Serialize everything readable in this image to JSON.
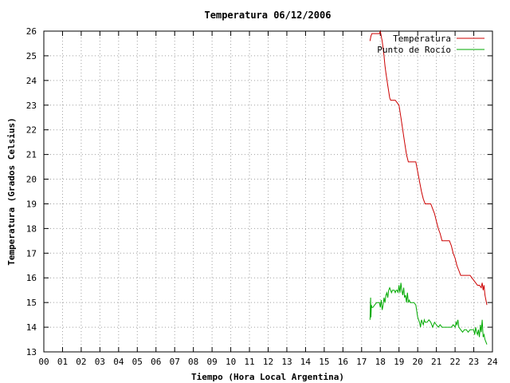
{
  "chart_data": {
    "type": "line",
    "title": "Temperatura 06/12/2006",
    "xlabel": "Tiempo (Hora Local Argentina)",
    "ylabel": "Temperatura (Grados Celsius)",
    "xlim": [
      0,
      24
    ],
    "ylim": [
      13,
      26
    ],
    "x_tick_labels": [
      "00",
      "01",
      "02",
      "03",
      "04",
      "05",
      "06",
      "07",
      "08",
      "09",
      "10",
      "11",
      "12",
      "13",
      "14",
      "15",
      "16",
      "17",
      "18",
      "19",
      "20",
      "21",
      "22",
      "23",
      "24"
    ],
    "y_ticks": [
      13,
      14,
      15,
      16,
      17,
      18,
      19,
      20,
      21,
      22,
      23,
      24,
      25,
      26
    ],
    "grid": true,
    "legend_position": "top-right",
    "series": [
      {
        "name": "Temperatura",
        "color": "#cc0000",
        "x": [
          17.45,
          17.5,
          17.55,
          17.6,
          17.65,
          17.7,
          17.75,
          17.85,
          17.95,
          18.0,
          18.05,
          18.1,
          18.15,
          18.2,
          18.25,
          18.3,
          18.4,
          18.5,
          18.55,
          18.6,
          18.7,
          18.8,
          18.9,
          19.0,
          19.1,
          19.2,
          19.3,
          19.4,
          19.5,
          19.6,
          19.7,
          19.8,
          19.9,
          20.0,
          20.1,
          20.2,
          20.3,
          20.4,
          20.5,
          20.6,
          20.7,
          20.8,
          20.9,
          21.0,
          21.1,
          21.2,
          21.3,
          21.4,
          21.5,
          21.6,
          21.7,
          21.8,
          21.9,
          22.0,
          22.1,
          22.2,
          22.3,
          22.4,
          22.5,
          22.6,
          22.7,
          22.8,
          22.9,
          23.0,
          23.1,
          23.2,
          23.3,
          23.4,
          23.45,
          23.5,
          23.55,
          23.6,
          23.65,
          23.7
        ],
        "values": [
          25.6,
          25.8,
          25.9,
          25.9,
          25.9,
          25.9,
          25.9,
          25.9,
          25.9,
          26.0,
          25.8,
          25.6,
          25.3,
          25.0,
          24.6,
          24.3,
          23.8,
          23.3,
          23.2,
          23.2,
          23.2,
          23.2,
          23.1,
          23.0,
          22.5,
          22.0,
          21.5,
          21.0,
          20.7,
          20.7,
          20.7,
          20.7,
          20.7,
          20.3,
          19.9,
          19.5,
          19.2,
          19.0,
          19.0,
          19.0,
          19.0,
          18.8,
          18.6,
          18.3,
          18.0,
          17.8,
          17.5,
          17.5,
          17.5,
          17.5,
          17.5,
          17.3,
          17.0,
          16.8,
          16.5,
          16.3,
          16.1,
          16.1,
          16.1,
          16.1,
          16.1,
          16.1,
          16.0,
          15.9,
          15.8,
          15.7,
          15.7,
          15.6,
          15.8,
          15.5,
          15.7,
          15.3,
          15.1,
          14.9
        ]
      },
      {
        "name": "Punto de Rocío",
        "color": "#00aa00",
        "x": [
          17.45,
          17.48,
          17.5,
          17.52,
          17.55,
          17.6,
          17.7,
          17.8,
          17.9,
          17.95,
          18.0,
          18.05,
          18.1,
          18.15,
          18.2,
          18.25,
          18.3,
          18.35,
          18.4,
          18.45,
          18.5,
          18.55,
          18.6,
          18.65,
          18.7,
          18.75,
          18.8,
          18.85,
          18.9,
          18.95,
          19.0,
          19.05,
          19.1,
          19.15,
          19.2,
          19.25,
          19.3,
          19.35,
          19.4,
          19.45,
          19.5,
          19.55,
          19.6,
          19.65,
          19.7,
          19.8,
          19.9,
          20.0,
          20.05,
          20.1,
          20.15,
          20.2,
          20.25,
          20.3,
          20.35,
          20.4,
          20.45,
          20.5,
          20.6,
          20.7,
          20.8,
          20.9,
          21.0,
          21.1,
          21.2,
          21.3,
          21.4,
          21.5,
          21.6,
          21.7,
          21.8,
          21.9,
          22.0,
          22.05,
          22.1,
          22.15,
          22.2,
          22.3,
          22.4,
          22.5,
          22.6,
          22.7,
          22.8,
          22.9,
          23.0,
          23.05,
          23.1,
          23.15,
          23.2,
          23.25,
          23.3,
          23.35,
          23.4,
          23.45,
          23.5,
          23.55,
          23.6,
          23.65,
          23.7
        ],
        "values": [
          14.3,
          15.2,
          14.4,
          14.9,
          14.8,
          14.8,
          14.9,
          15.0,
          15.0,
          15.0,
          14.8,
          15.1,
          14.7,
          14.9,
          15.2,
          15.0,
          15.3,
          15.4,
          15.2,
          15.5,
          15.6,
          15.5,
          15.4,
          15.5,
          15.5,
          15.5,
          15.4,
          15.5,
          15.5,
          15.4,
          15.7,
          15.4,
          15.8,
          15.5,
          15.3,
          15.6,
          15.2,
          15.3,
          15.0,
          15.4,
          15.0,
          15.1,
          15.0,
          15.0,
          15.0,
          15.0,
          14.9,
          14.4,
          14.3,
          14.2,
          14.0,
          14.3,
          14.2,
          14.1,
          14.3,
          14.2,
          14.2,
          14.2,
          14.3,
          14.2,
          14.0,
          14.2,
          14.1,
          14.0,
          14.1,
          14.0,
          14.0,
          14.0,
          14.0,
          14.0,
          14.0,
          14.1,
          14.0,
          14.2,
          14.1,
          14.3,
          14.0,
          13.9,
          13.8,
          13.9,
          13.9,
          13.8,
          13.9,
          13.9,
          13.9,
          13.7,
          14.0,
          13.8,
          13.7,
          13.9,
          13.6,
          14.1,
          13.8,
          14.3,
          13.6,
          13.7,
          13.5,
          13.4,
          13.3
        ]
      }
    ]
  }
}
